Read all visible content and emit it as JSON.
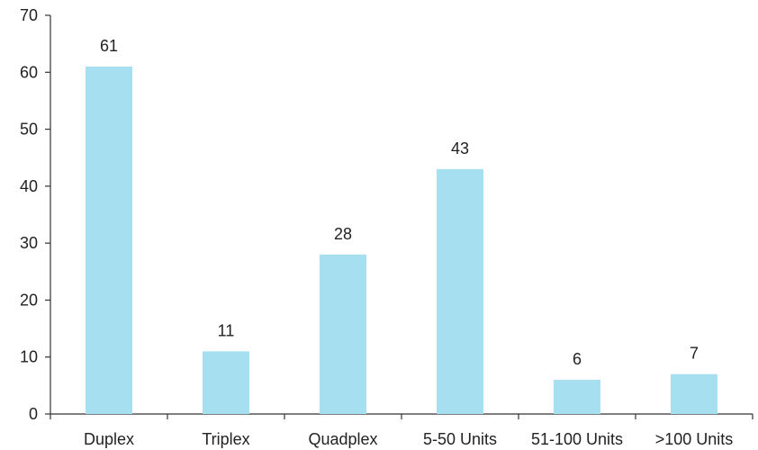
{
  "chart_data": {
    "type": "bar",
    "categories": [
      "Duplex",
      "Triplex",
      "Quadplex",
      "5-50 Units",
      "51-100 Units",
      ">100 Units"
    ],
    "values": [
      61,
      11,
      28,
      43,
      6,
      7
    ],
    "data_labels": [
      "61",
      "11",
      "28",
      "43",
      "6",
      "7"
    ],
    "yticks": [
      0,
      10,
      20,
      30,
      40,
      50,
      60,
      70
    ],
    "ylim": [
      0,
      70
    ],
    "grid": false,
    "legend": "none",
    "bar_color": "#a6dff0"
  }
}
